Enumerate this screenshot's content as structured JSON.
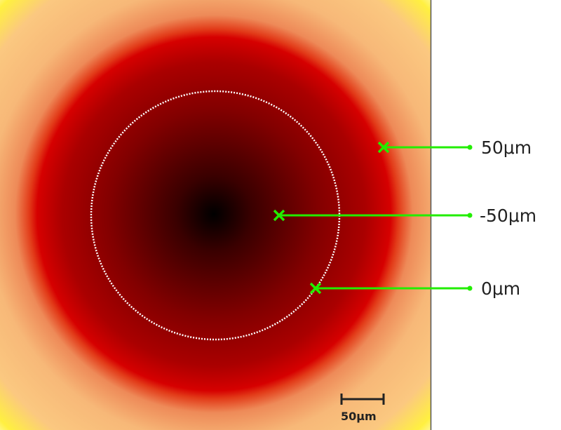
{
  "colors": {
    "marker": "#22ee00",
    "contour": "#ffffff",
    "divider": "#555555"
  },
  "map": {
    "colormap": "black-red-orange-yellow radial"
  },
  "markers": [
    {
      "label": "50μm",
      "icon": "x-marker-icon"
    },
    {
      "label": "-50μm",
      "icon": "x-marker-icon"
    },
    {
      "label": "0μm",
      "icon": "x-marker-icon"
    }
  ],
  "scale_bar": {
    "label": "50μm"
  }
}
